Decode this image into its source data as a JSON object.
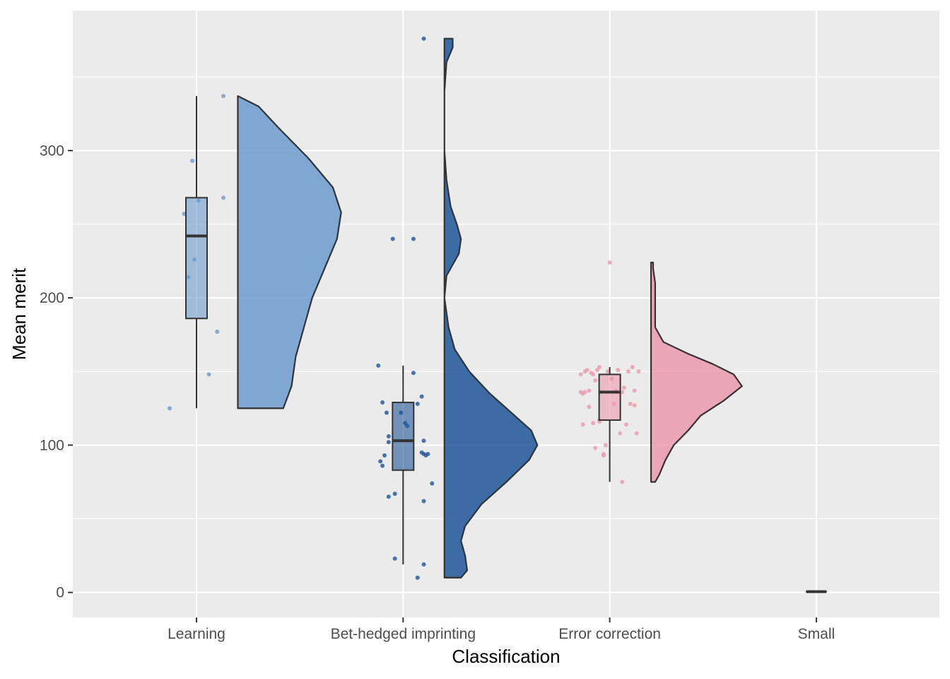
{
  "chart_data": {
    "type": "raincloud",
    "xlabel": "Classification",
    "ylabel": "Mean merit",
    "ylim": [
      -17,
      395
    ],
    "y_ticks": [
      0,
      100,
      200,
      300
    ],
    "y_tick_labels": [
      "0",
      "100",
      "200",
      "300"
    ],
    "grid": true,
    "legend": "none",
    "categories": [
      "Learning",
      "Bet-hedged imprinting",
      "Error correction",
      "Small"
    ],
    "groups": [
      {
        "category": "Learning",
        "color": "#6c9bcd",
        "box": {
          "min": 125,
          "q1": 186,
          "median": 242,
          "q3": 268,
          "max": 337
        },
        "points": [
          [
            -0.13,
            125
          ],
          [
            -0.06,
            257
          ],
          [
            -0.04,
            214
          ],
          [
            -0.02,
            293
          ],
          [
            -0.01,
            226
          ],
          [
            0.01,
            266
          ],
          [
            0.06,
            148
          ],
          [
            0.1,
            177
          ],
          [
            0.13,
            268
          ],
          [
            0.13,
            337
          ]
        ],
        "density": [
          [
            125,
            0.22
          ],
          [
            140,
            0.26
          ],
          [
            160,
            0.28
          ],
          [
            180,
            0.32
          ],
          [
            200,
            0.36
          ],
          [
            220,
            0.42
          ],
          [
            240,
            0.48
          ],
          [
            258,
            0.5
          ],
          [
            275,
            0.46
          ],
          [
            295,
            0.34
          ],
          [
            315,
            0.2
          ],
          [
            330,
            0.1
          ],
          [
            337,
            0.0
          ]
        ]
      },
      {
        "category": "Bet-hedged imprinting",
        "color": "#1f5597",
        "box": {
          "min": 19,
          "q1": 83,
          "median": 103,
          "q3": 129,
          "max": 154
        },
        "points": [
          [
            -0.12,
            154
          ],
          [
            -0.11,
            89
          ],
          [
            -0.1,
            86
          ],
          [
            -0.1,
            129
          ],
          [
            -0.09,
            93
          ],
          [
            -0.08,
            122
          ],
          [
            -0.07,
            65
          ],
          [
            -0.07,
            102
          ],
          [
            -0.07,
            106
          ],
          [
            -0.05,
            240
          ],
          [
            -0.04,
            67
          ],
          [
            -0.04,
            23
          ],
          [
            -0.01,
            122
          ],
          [
            0.01,
            115
          ],
          [
            0.02,
            113
          ],
          [
            0.05,
            149
          ],
          [
            0.05,
            240
          ],
          [
            0.07,
            10
          ],
          [
            0.07,
            128
          ],
          [
            0.09,
            95
          ],
          [
            0.09,
            133
          ],
          [
            0.1,
            62
          ],
          [
            0.1,
            103
          ],
          [
            0.1,
            19
          ],
          [
            0.1,
            94
          ],
          [
            0.11,
            93
          ],
          [
            0.12,
            94
          ],
          [
            0.1,
            376
          ],
          [
            0.14,
            74
          ]
        ],
        "density": [
          [
            10,
            0.08
          ],
          [
            15,
            0.11
          ],
          [
            25,
            0.1
          ],
          [
            35,
            0.08
          ],
          [
            45,
            0.1
          ],
          [
            60,
            0.18
          ],
          [
            75,
            0.3
          ],
          [
            90,
            0.41
          ],
          [
            100,
            0.45
          ],
          [
            110,
            0.42
          ],
          [
            120,
            0.34
          ],
          [
            135,
            0.22
          ],
          [
            150,
            0.12
          ],
          [
            165,
            0.05
          ],
          [
            180,
            0.02
          ],
          [
            200,
            0.0
          ],
          [
            215,
            0.01
          ],
          [
            230,
            0.07
          ],
          [
            240,
            0.08
          ],
          [
            250,
            0.06
          ],
          [
            262,
            0.03
          ],
          [
            280,
            0.01
          ],
          [
            300,
            0.0
          ],
          [
            340,
            0.0
          ],
          [
            360,
            0.01
          ],
          [
            370,
            0.04
          ],
          [
            376,
            0.04
          ]
        ]
      },
      {
        "category": "Error correction",
        "color": "#eb9aac",
        "box": {
          "min": 75,
          "q1": 117,
          "median": 136,
          "q3": 148,
          "max": 153
        },
        "points": [
          [
            -0.14,
            148
          ],
          [
            -0.14,
            136
          ],
          [
            -0.13,
            114
          ],
          [
            -0.13,
            135
          ],
          [
            -0.12,
            150
          ],
          [
            -0.11,
            151
          ],
          [
            -0.1,
            126
          ],
          [
            -0.1,
            137
          ],
          [
            -0.09,
            149
          ],
          [
            -0.08,
            148
          ],
          [
            -0.08,
            115
          ],
          [
            -0.07,
            144
          ],
          [
            -0.07,
            98
          ],
          [
            -0.06,
            151
          ],
          [
            -0.05,
            153
          ],
          [
            -0.05,
            116
          ],
          [
            -0.04,
            136
          ],
          [
            -0.03,
            94
          ],
          [
            -0.03,
            93
          ],
          [
            -0.02,
            100
          ],
          [
            -0.01,
            150
          ],
          [
            0.0,
            224
          ],
          [
            0.01,
            145
          ],
          [
            0.02,
            128
          ],
          [
            0.03,
            137
          ],
          [
            0.04,
            151
          ],
          [
            0.05,
            108
          ],
          [
            0.06,
            136
          ],
          [
            0.07,
            139
          ],
          [
            0.08,
            114
          ],
          [
            0.09,
            150
          ],
          [
            0.1,
            128
          ],
          [
            0.11,
            153
          ],
          [
            0.12,
            127
          ],
          [
            0.12,
            137
          ],
          [
            0.13,
            108
          ],
          [
            0.14,
            150
          ],
          [
            -0.12,
            136
          ],
          [
            -0.05,
            117
          ],
          [
            0.06,
            75
          ]
        ],
        "density": [
          [
            75,
            0.02
          ],
          [
            80,
            0.04
          ],
          [
            90,
            0.07
          ],
          [
            100,
            0.11
          ],
          [
            110,
            0.18
          ],
          [
            120,
            0.24
          ],
          [
            130,
            0.35
          ],
          [
            140,
            0.44
          ],
          [
            148,
            0.4
          ],
          [
            155,
            0.3
          ],
          [
            162,
            0.18
          ],
          [
            170,
            0.06
          ],
          [
            180,
            0.02
          ],
          [
            195,
            0.02
          ],
          [
            210,
            0.02
          ],
          [
            220,
            0.01
          ],
          [
            224,
            0.01
          ]
        ]
      },
      {
        "category": "Small",
        "color": "#4d4d4d",
        "box": {
          "min": 0.5,
          "q1": 0.5,
          "median": 0.5,
          "q3": 0.5,
          "max": 0.5
        },
        "points": [],
        "density": []
      }
    ]
  }
}
